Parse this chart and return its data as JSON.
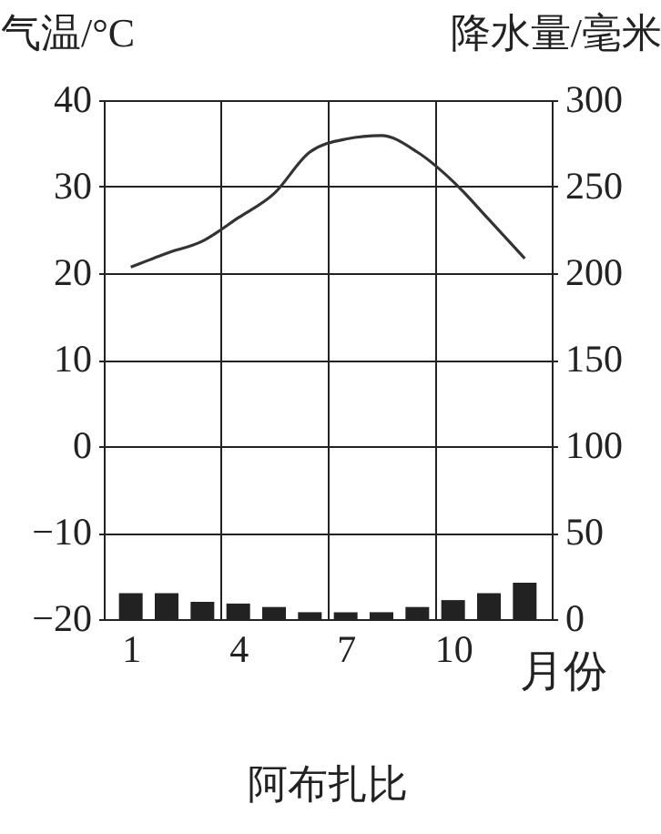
{
  "chart_data": {
    "type": "line",
    "title": "阿布扎比",
    "xlabel": "月份",
    "ylabel": "气温/°C",
    "y2label": "降水量/毫米",
    "x": [
      1,
      2,
      3,
      4,
      5,
      6,
      7,
      8,
      9,
      10,
      11,
      12
    ],
    "xlim": [
      0.5,
      12.5
    ],
    "xticks": [
      1,
      4,
      7,
      10
    ],
    "ylim": [
      -20,
      40
    ],
    "yticks": [
      -20,
      -10,
      0,
      10,
      20,
      30,
      40
    ],
    "y2lim": [
      0,
      300
    ],
    "y2ticks": [
      0,
      50,
      100,
      150,
      200,
      250,
      300
    ],
    "grid": true,
    "series": [
      {
        "color": "#333333",
        "values": [
          20.7,
          22.3,
          23.7,
          26.4,
          29.2,
          34,
          35.5,
          35.9,
          34,
          30.6,
          26.2,
          21.7
        ]
      },
      {
        "type": "bar",
        "axis": "y2",
        "color": "#222222",
        "values": [
          15,
          15,
          10,
          9,
          7,
          4,
          4,
          4,
          7,
          11,
          15,
          21
        ]
      }
    ]
  }
}
